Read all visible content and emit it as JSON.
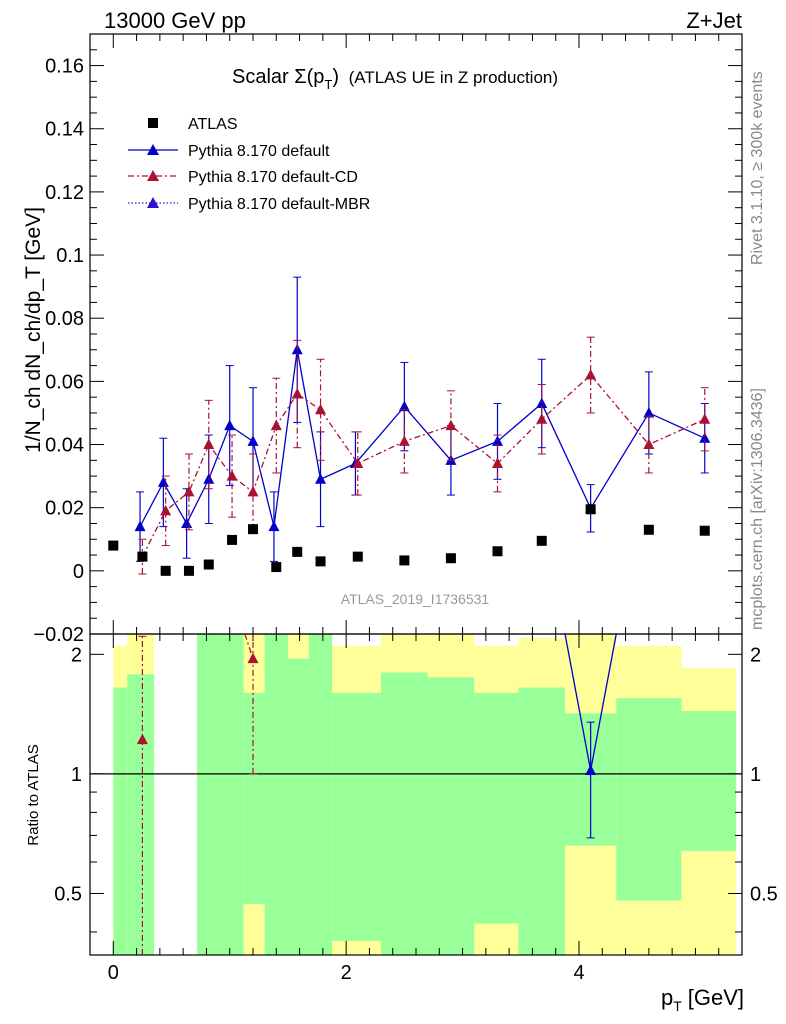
{
  "header": {
    "energy_label": "13000 GeV pp",
    "process_label": "Z+Jet"
  },
  "side_labels": {
    "rivet": "Rivet 3.1.10, ≥ 300k events",
    "mcplots": "mcplots.cern.ch [arXiv:1306.3436]"
  },
  "chart_data": {
    "type": "scatter",
    "title_main": "Scalar Σ(p",
    "title_sub": "T",
    "title_close": ")",
    "title_rest": "(ATLAS UE in Z production)",
    "analysis_id": "ATLAS_2019_I1736531",
    "xlabel": "p",
    "xlabel_sub": "T",
    "xlabel_unit": "[GeV]",
    "ylabel": "1/N_ch dN_ch/dp_T [GeV]",
    "ratio_ylabel": "Ratio to ATLAS",
    "xlim": [
      -0.2,
      5.4
    ],
    "ylim": [
      -0.02,
      0.17
    ],
    "ratio_ylim": [
      0.35,
      2.25
    ],
    "x_ticks": [
      0,
      2,
      4
    ],
    "y_ticks": [
      -0.02,
      0,
      0.02,
      0.04,
      0.06,
      0.08,
      0.1,
      0.12,
      0.14,
      0.16
    ],
    "y_tick_labels": [
      "−0.02",
      "0",
      "0.02",
      "0.04",
      "0.06",
      "0.08",
      "0.1",
      "0.12",
      "0.14",
      "0.16"
    ],
    "ratio_ticks": [
      0.5,
      1,
      2
    ],
    "ratio_tick_labels": [
      "0.5",
      "1",
      "2"
    ],
    "legend": [
      {
        "name": "ATLAS",
        "marker": "square"
      },
      {
        "name": "Pythia 8.170 default",
        "marker": "triangle"
      },
      {
        "name": "Pythia 8.170 default-CD",
        "marker": "triangle"
      },
      {
        "name": "Pythia 8.170 default-MBR",
        "marker": "triangle"
      }
    ],
    "colors": {
      "data": "#000000",
      "default": "#0000cc",
      "cd": "#aa1133",
      "mbr": "#3311cc",
      "band_inner": "#99ff99",
      "band_outer": "#ffff99"
    },
    "data_x": [
      0.0,
      0.25,
      0.45,
      0.65,
      0.82,
      1.02,
      1.2,
      1.4,
      1.58,
      1.78,
      2.1,
      2.5,
      2.9,
      3.3,
      3.68,
      4.1,
      4.6,
      5.08
    ],
    "data_y": [
      0.008,
      0.0045,
      0.0,
      0.0,
      0.002,
      0.0098,
      0.0132,
      0.0012,
      0.006,
      0.003,
      0.0045,
      0.0033,
      0.004,
      0.0062,
      0.0095,
      0.0195,
      0.013,
      0.0127
    ],
    "bins": [
      {
        "lo": 0.0,
        "hi": 0.12,
        "inner": [
          0.35,
          1.65
        ],
        "outer": [
          0.35,
          2.1
        ]
      },
      {
        "lo": 0.12,
        "hi": 0.35,
        "inner": [
          0.35,
          1.78
        ],
        "outer": [
          0.35,
          2.25
        ]
      },
      {
        "lo": 0.72,
        "hi": 0.92,
        "inner": [
          0.35,
          2.25
        ],
        "outer": [
          0.35,
          2.25
        ]
      },
      {
        "lo": 0.92,
        "hi": 1.12,
        "inner": [
          0.35,
          2.25
        ],
        "outer": [
          0.35,
          2.25
        ]
      },
      {
        "lo": 1.12,
        "hi": 1.3,
        "inner": [
          0.47,
          1.6
        ],
        "outer": [
          0.35,
          2.25
        ]
      },
      {
        "lo": 1.3,
        "hi": 1.5,
        "inner": [
          0.35,
          2.25
        ],
        "outer": [
          0.35,
          2.25
        ]
      },
      {
        "lo": 1.5,
        "hi": 1.68,
        "inner": [
          0.35,
          1.95
        ],
        "outer": [
          0.35,
          2.25
        ]
      },
      {
        "lo": 1.68,
        "hi": 1.88,
        "inner": [
          0.35,
          2.25
        ],
        "outer": [
          0.35,
          2.25
        ]
      },
      {
        "lo": 1.88,
        "hi": 2.3,
        "inner": [
          0.38,
          1.6
        ],
        "outer": [
          0.35,
          2.1
        ]
      },
      {
        "lo": 2.3,
        "hi": 2.7,
        "inner": [
          0.35,
          1.8
        ],
        "outer": [
          0.35,
          2.25
        ]
      },
      {
        "lo": 2.7,
        "hi": 3.1,
        "inner": [
          0.35,
          1.75
        ],
        "outer": [
          0.35,
          2.25
        ]
      },
      {
        "lo": 3.1,
        "hi": 3.48,
        "inner": [
          0.42,
          1.6
        ],
        "outer": [
          0.35,
          2.1
        ]
      },
      {
        "lo": 3.48,
        "hi": 3.88,
        "inner": [
          0.35,
          1.65
        ],
        "outer": [
          0.35,
          2.2
        ]
      },
      {
        "lo": 3.88,
        "hi": 4.32,
        "inner": [
          0.66,
          1.42
        ],
        "outer": [
          0.35,
          2.25
        ]
      },
      {
        "lo": 4.32,
        "hi": 4.88,
        "inner": [
          0.48,
          1.55
        ],
        "outer": [
          0.35,
          2.1
        ]
      },
      {
        "lo": 4.88,
        "hi": 5.35,
        "inner": [
          0.64,
          1.44
        ],
        "outer": [
          0.35,
          1.85
        ]
      }
    ],
    "series": [
      {
        "name": "Pythia 8.170 default",
        "key": "default",
        "style": "solid",
        "x": [
          0.23,
          0.43,
          0.63,
          0.82,
          1.0,
          1.2,
          1.38,
          1.58,
          1.78,
          2.08,
          2.5,
          2.9,
          3.3,
          3.68,
          4.1,
          4.6,
          5.08
        ],
        "y": [
          0.014,
          0.028,
          0.015,
          0.029,
          0.046,
          0.041,
          0.014,
          0.07,
          0.029,
          0.034,
          0.052,
          0.035,
          0.041,
          0.053,
          0.0198,
          0.05,
          0.042
        ],
        "err": [
          0.011,
          0.014,
          0.011,
          0.014,
          0.019,
          0.017,
          0.011,
          0.023,
          0.015,
          0.01,
          0.014,
          0.011,
          0.012,
          0.014,
          0.0075,
          0.013,
          0.011
        ],
        "ratio_x": [
          4.1
        ],
        "ratio_y": [
          1.02
        ],
        "ratio_err": [
          0.33
        ]
      },
      {
        "name": "Pythia 8.170 default-CD",
        "key": "cd",
        "style": "dashdot",
        "x": [
          0.25,
          0.45,
          0.65,
          0.82,
          1.02,
          1.2,
          1.4,
          1.58,
          1.78,
          2.1,
          2.5,
          2.9,
          3.3,
          3.68,
          4.1,
          4.6,
          5.08
        ],
        "y": [
          0.0045,
          0.019,
          0.025,
          0.04,
          0.03,
          0.025,
          0.046,
          0.056,
          0.051,
          0.034,
          0.041,
          0.046,
          0.034,
          0.048,
          0.062,
          0.04,
          0.048
        ],
        "err": [
          0.0055,
          0.011,
          0.012,
          0.014,
          0.013,
          0.012,
          0.015,
          0.017,
          0.016,
          0.01,
          0.01,
          0.011,
          0.009,
          0.011,
          0.012,
          0.009,
          0.01
        ],
        "ratio_x": [
          0.25,
          1.2
        ],
        "ratio_y": [
          1.22,
          1.95
        ],
        "ratio_err": [
          1.0,
          0.95
        ]
      },
      {
        "name": "Pythia 8.170 default-MBR",
        "key": "mbr",
        "style": "dotted",
        "x": [],
        "y": [],
        "err": [],
        "ratio_x": [],
        "ratio_y": [],
        "ratio_err": []
      }
    ]
  }
}
